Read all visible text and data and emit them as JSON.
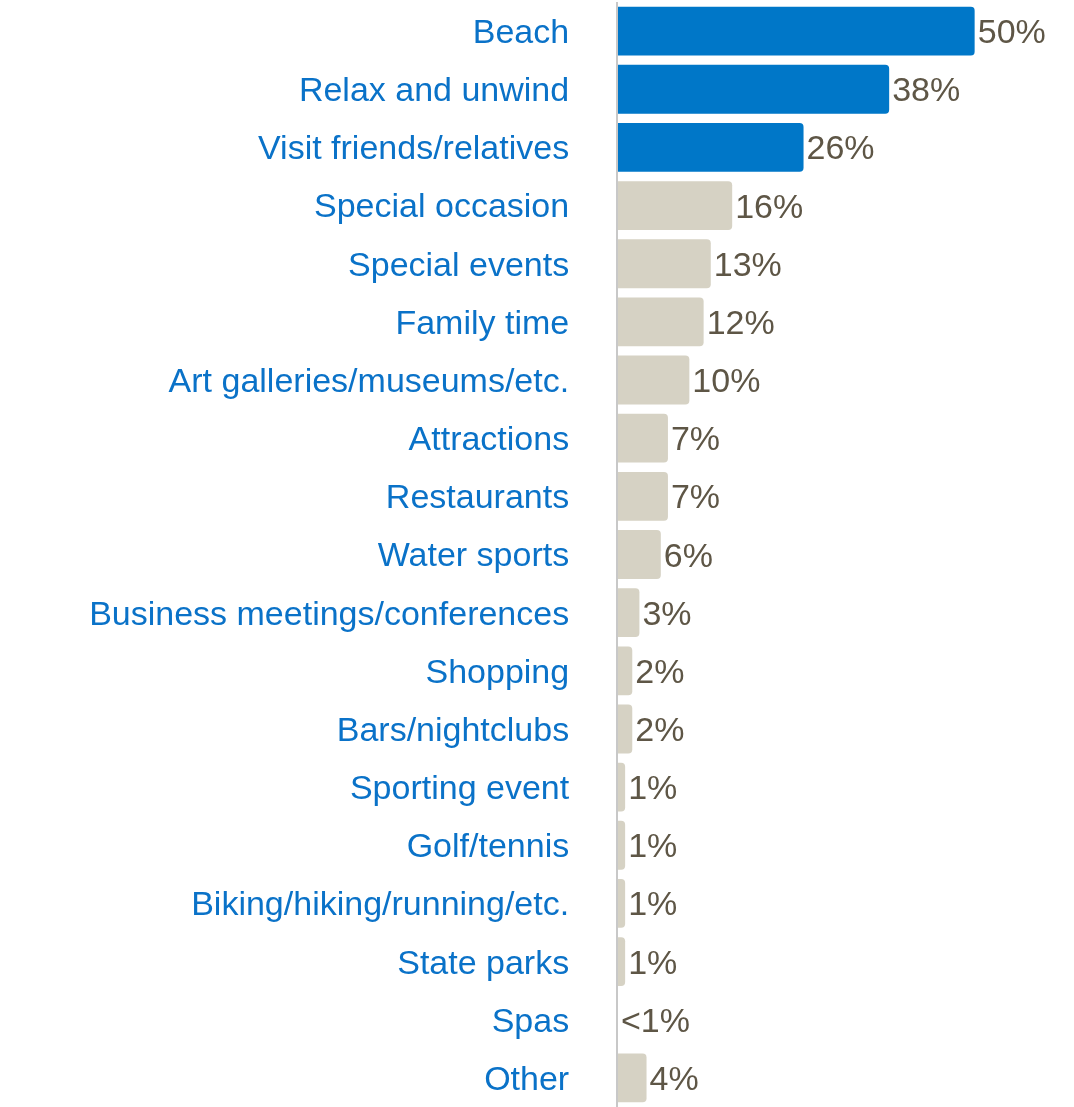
{
  "chart_data": {
    "type": "bar",
    "orientation": "horizontal",
    "categories": [
      "Beach",
      "Relax and unwind",
      "Visit friends/relatives",
      "Special occasion",
      "Special events",
      "Family time",
      "Art galleries/museums/etc.",
      "Attractions",
      "Restaurants",
      "Water sports",
      "Business meetings/conferences",
      "Shopping",
      "Bars/nightclubs",
      "Sporting event",
      "Golf/tennis",
      "Biking/hiking/running/etc.",
      "State parks",
      "Spas",
      "Other"
    ],
    "values": [
      50,
      38,
      26,
      16,
      13,
      12,
      10,
      7,
      7,
      6,
      3,
      2,
      2,
      1,
      1,
      1,
      1,
      null,
      4
    ],
    "value_labels": [
      "50%",
      "38%",
      "26%",
      "16%",
      "13%",
      "12%",
      "10%",
      "7%",
      "7%",
      "6%",
      "3%",
      "2%",
      "2%",
      "1%",
      "1%",
      "1%",
      "1%",
      "<1%",
      "4%"
    ],
    "colors": [
      "#0077c8",
      "#0077c8",
      "#0077c8",
      "#d6d2c4",
      "#d6d2c4",
      "#d6d2c4",
      "#d6d2c4",
      "#d6d2c4",
      "#d6d2c4",
      "#d6d2c4",
      "#d6d2c4",
      "#d6d2c4",
      "#d6d2c4",
      "#d6d2c4",
      "#d6d2c4",
      "#d6d2c4",
      "#d6d2c4",
      "#d6d2c4",
      "#d6d2c4"
    ],
    "legend": false
  }
}
